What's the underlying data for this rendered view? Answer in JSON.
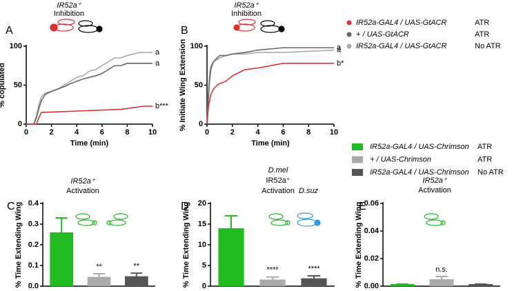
{
  "chart_data": [
    {
      "type": "line",
      "label": "A",
      "ylabel": "% copulated",
      "xlabel": "Time (min)",
      "xlim": [
        0,
        10
      ],
      "xticks": [
        0,
        2,
        4,
        6,
        8,
        10
      ],
      "ylim": [
        0,
        100
      ],
      "yticks": [
        0,
        50,
        100
      ],
      "annotations": [
        "IR52a⁺",
        "Inhibition"
      ],
      "annotation_colors": [
        "#e03030",
        "#e03030"
      ],
      "series": [
        {
          "name": "IR52a-GAL4 / UAS-GtACR",
          "condition": "ATR",
          "color": "#e03030",
          "end_label": "b***",
          "x": [
            0,
            0.8,
            0.9,
            1.0,
            1.1,
            1.2,
            7.5,
            9.3,
            10
          ],
          "values": [
            0,
            0,
            4,
            8,
            12,
            15,
            19,
            23,
            23
          ]
        },
        {
          "name": "+ / UAS-GtACR",
          "condition": "ATR",
          "color": "#666666",
          "end_label": "a",
          "x": [
            0,
            0.6,
            0.8,
            1.0,
            1.2,
            1.5,
            2,
            2.5,
            3,
            3.5,
            4,
            4.5,
            5,
            5.5,
            6,
            6.5,
            7,
            7.5,
            8,
            9,
            10
          ],
          "values": [
            0,
            0,
            8,
            20,
            30,
            38,
            42,
            45,
            48,
            52,
            55,
            58,
            60,
            62,
            65,
            70,
            75,
            75,
            78,
            78,
            78
          ]
        },
        {
          "name": "IR52a-GAL4 / UAS-GtACR",
          "condition": "No ATR",
          "color": "#aaaaaa",
          "end_label": "a",
          "x": [
            0,
            0.6,
            0.8,
            1.0,
            1.2,
            1.5,
            2,
            2.5,
            3,
            3.5,
            4,
            4.5,
            5,
            5.5,
            6,
            6.5,
            7,
            7.5,
            8,
            9,
            10
          ],
          "values": [
            0,
            0,
            10,
            25,
            35,
            40,
            42,
            45,
            50,
            55,
            60,
            62,
            68,
            70,
            75,
            80,
            85,
            85,
            88,
            92,
            92
          ]
        }
      ]
    },
    {
      "type": "line",
      "label": "B",
      "ylabel": "% Initiate Wing Extension",
      "xlabel": "Time (min)",
      "xlim": [
        0,
        10
      ],
      "xticks": [
        0,
        2,
        4,
        6,
        8,
        10
      ],
      "ylim": [
        0,
        100
      ],
      "yticks": [
        0,
        50,
        100
      ],
      "annotations": [
        "IR52a⁺",
        "Inhibition"
      ],
      "annotation_colors": [
        "#e03030",
        "#e03030"
      ],
      "series": [
        {
          "name": "IR52a-GAL4 / UAS-GtACR",
          "color": "#e03030",
          "end_label": "b*",
          "x": [
            0,
            0.1,
            0.2,
            0.3,
            0.5,
            0.8,
            1,
            1.5,
            2,
            3,
            4,
            6,
            10
          ],
          "values": [
            0,
            20,
            30,
            38,
            45,
            50,
            52,
            55,
            62,
            70,
            72,
            78,
            78
          ]
        },
        {
          "name": "+ / UAS-GtACR",
          "color": "#666666",
          "end_label": "a",
          "x": [
            0,
            0.1,
            0.2,
            0.3,
            0.5,
            0.8,
            1,
            1.5,
            2,
            3,
            4,
            6,
            10
          ],
          "values": [
            0,
            30,
            55,
            70,
            80,
            85,
            88,
            88,
            90,
            92,
            95,
            98,
            98
          ]
        },
        {
          "name": "IR52a-GAL4 / UAS-GtACR",
          "color": "#aaaaaa",
          "end_label": "a",
          "x": [
            0,
            0.1,
            0.2,
            0.3,
            0.5,
            0.8,
            1,
            1.5,
            2,
            3,
            4,
            6,
            10
          ],
          "values": [
            0,
            40,
            65,
            75,
            80,
            83,
            85,
            88,
            90,
            90,
            92,
            92,
            95
          ]
        }
      ]
    },
    {
      "type": "bar",
      "label": "C",
      "ylabel": "% Time Extending Wing",
      "ylim": [
        0,
        0.4
      ],
      "yticks": [
        {
          "value": 0,
          "label": "0.0"
        },
        0.1,
        0.2,
        0.3,
        0.4
      ],
      "categories": [
        null,
        null,
        null
      ],
      "values": [
        0.26,
        0.045,
        0.048
      ],
      "errors": [
        0.07,
        0.015,
        0.015
      ],
      "colors": [
        "#22bb22",
        "#aaaaaa",
        "#555555"
      ],
      "sig_labels": [
        null,
        "**",
        "**"
      ],
      "annotations": [
        "IR52a⁺",
        "Activation"
      ],
      "annotation_colors": [
        "#22bb22",
        "#22bb22"
      ],
      "legend": [
        {
          "name": "IR52a-GAL4 / UAS-Chrimson",
          "condition": "ATR",
          "color": "#22bb22"
        },
        {
          "name": "+ / UAS-Chrimson",
          "condition": "ATR",
          "color": "#aaaaaa"
        },
        {
          "name": "IR52a-GAL4 / UAS-Chrimson",
          "condition": "No ATR",
          "color": "#555555"
        }
      ]
    },
    {
      "type": "bar",
      "label": "D",
      "ylabel": "% Time Extending Wing",
      "ylim": [
        0,
        20
      ],
      "yticks": [
        0,
        5,
        10,
        15,
        20
      ],
      "categories": [
        null,
        null,
        null
      ],
      "values": [
        14,
        1.6,
        1.9
      ],
      "errors": [
        3,
        0.6,
        0.6
      ],
      "colors": [
        "#22bb22",
        "#aaaaaa",
        "#555555"
      ],
      "sig_labels": [
        null,
        "****",
        "****"
      ],
      "annotations": [
        "D.mel",
        "IR52a⁺",
        "Activation",
        "D.suz"
      ],
      "annotation_colors": [
        "#22bb22",
        "#22bb22",
        "#22bb22",
        "#3399dd"
      ]
    },
    {
      "type": "bar",
      "label": "E",
      "ylabel": "% Time Extending Wing",
      "ylim": [
        0,
        0.06
      ],
      "yticks": [
        {
          "value": 0,
          "label": "0.00"
        },
        {
          "value": 0.02,
          "label": "0.02"
        },
        {
          "value": 0.04,
          "label": "0.04"
        },
        {
          "value": 0.06,
          "label": "0.06"
        }
      ],
      "categories": [
        null,
        null,
        null
      ],
      "values": [
        0.0015,
        0.005,
        0.0015
      ],
      "errors": [
        0,
        0.002,
        0
      ],
      "colors": [
        "#22bb22",
        "#aaaaaa",
        "#555555"
      ],
      "sig_labels": [
        null,
        "n.s.",
        null
      ],
      "annotations": [
        "IR52a⁺",
        "Activation"
      ],
      "annotation_colors": [
        "#22bb22",
        "#22bb22"
      ]
    }
  ]
}
